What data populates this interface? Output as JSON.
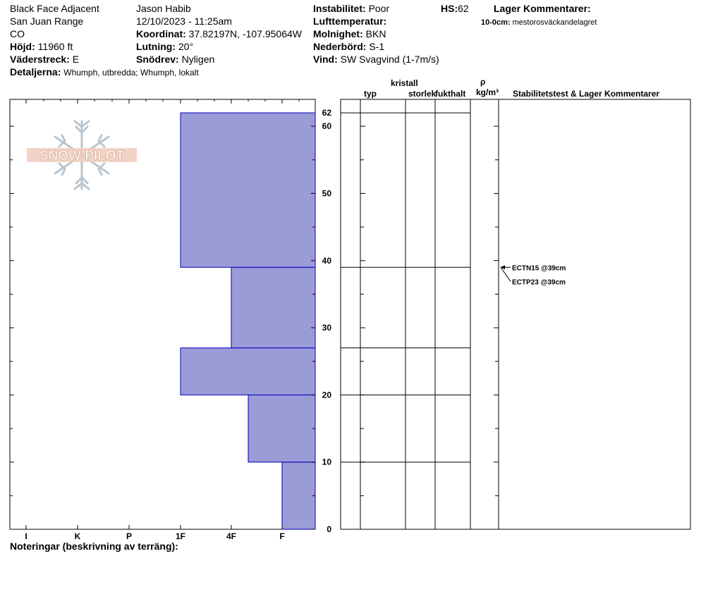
{
  "header": {
    "location": "Black Face Adjacent",
    "range": "San Juan Range",
    "state": "CO",
    "elevation_label": "Höjd:",
    "elevation_value": "11960 ft",
    "aspect_label": "Väderstreck:",
    "aspect_value": "E",
    "details_label": "Detaljerna:",
    "details_value": "Whumph, utbredda; Whumph, lokalt",
    "observer": "Jason Habib",
    "datetime": "12/10/2023 - 11:25am",
    "coord_label": "Koordinat:",
    "coord_value": "37.82197N, -107.95064W",
    "slope_label": "Lutning:",
    "slope_value": "20°",
    "drift_label": "Snödrev:",
    "drift_value": "Nyligen",
    "instability_label": "Instabilitet:",
    "instability_value": "Poor",
    "airtemp_label": "Lufttemperatur:",
    "sky_label": "Molnighet:",
    "sky_value": "BKN",
    "precip_label": "Nederbörd:",
    "precip_value": "S-1",
    "wind_label": "Vind:",
    "wind_value": "SW  Svagvind (1-7m/s)",
    "hs_label": "HS:",
    "hs_value": "62",
    "layer_comments_label": "Lager Kommentarer:",
    "layer_comment_depth": "10-0cm:",
    "layer_comment_text": "mestorosväckandelagret"
  },
  "logo": {
    "text": "SNOW PILOT"
  },
  "columns": {
    "type": "typ",
    "crystal": "kristall",
    "size": "storlek",
    "moisture": "fukthalt",
    "rho": "ρ",
    "density_unit": "kg/m³",
    "stability": "Stabilitetstest & Lager Kommentarer"
  },
  "notes_label": "Noteringar (beskrivning av terräng):",
  "chart_data": {
    "type": "bar",
    "orientation": "horizontal-step",
    "title": "",
    "ylabel": "",
    "xlabel": "",
    "ylim": [
      0,
      62
    ],
    "y_ticks": [
      0,
      10,
      20,
      30,
      40,
      50,
      60
    ],
    "y_top_label": "62",
    "hardness_scale": [
      "I",
      "K",
      "P",
      "1F",
      "4F",
      "F"
    ],
    "hardness_index": {
      "F": 1,
      "4F": 2,
      "1F": 3,
      "P": 4,
      "K": 5,
      "I": 6
    },
    "layers": [
      {
        "bottom": 0,
        "top": 10,
        "hardness": "F"
      },
      {
        "bottom": 10,
        "top": 20,
        "hardness": "4F-"
      },
      {
        "bottom": 20,
        "top": 27,
        "hardness": "1F"
      },
      {
        "bottom": 27,
        "top": 39,
        "hardness": "4F"
      },
      {
        "bottom": 39,
        "top": 62,
        "hardness": "1F"
      }
    ],
    "layer_hardness_values": [
      1,
      1.5,
      3,
      2,
      3
    ],
    "layer_boundaries": [
      10,
      20,
      27,
      39,
      62
    ],
    "stability_tests": [
      {
        "depth": 39,
        "label": "ECTN15 @39cm"
      },
      {
        "depth": 39,
        "label": "ECTP23 @39cm"
      }
    ],
    "bar_color": "#9b9bd7",
    "bar_edge_color": "#0000bb"
  }
}
